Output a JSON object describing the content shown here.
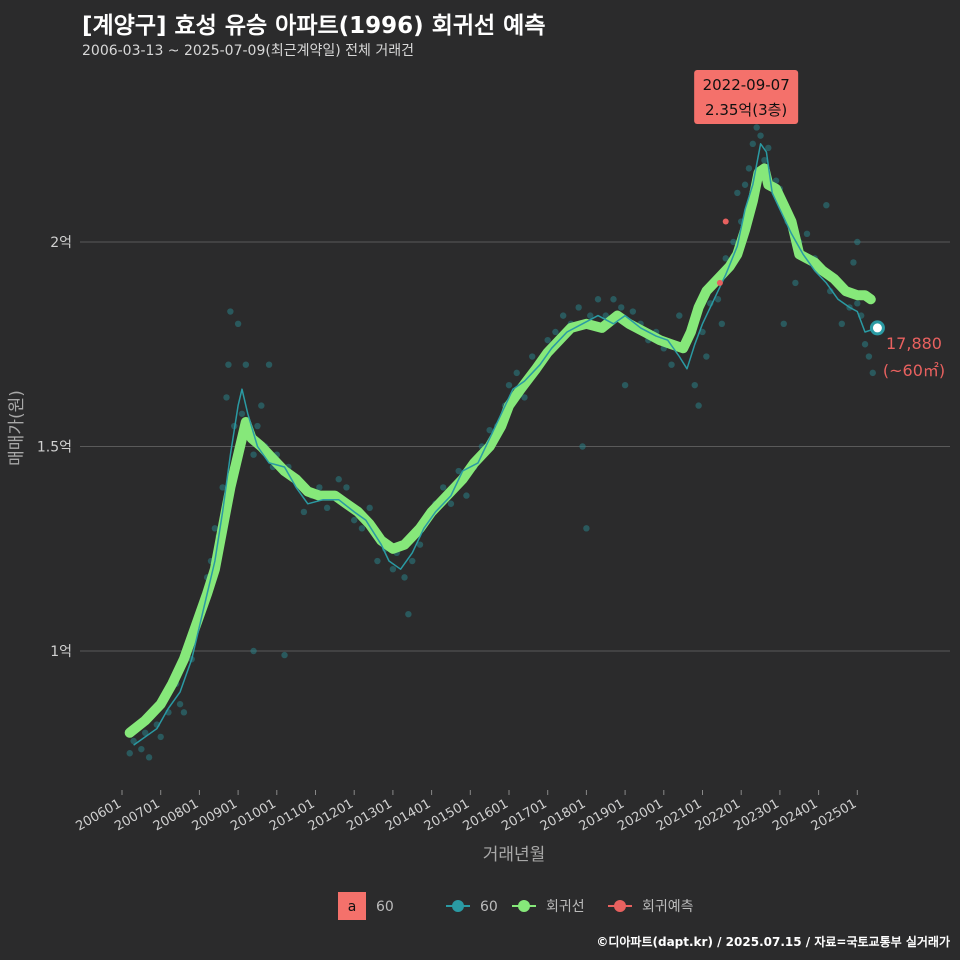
{
  "header": {
    "title": "[계양구] 효성 유승 아파트(1996) 회귀선 예측",
    "subtitle": "2006-03-13 ~ 2025-07-09(최근계약일) 전체 거래건"
  },
  "caption": "©디아파트(dapt.kr) / 2025.07.15 / 자료=국토교통부 실거래가",
  "colors": {
    "background": "#2b2b2c",
    "grid": "#5a5a5a",
    "scatter": "#2a7f86",
    "trend_line": "#2a9aa3",
    "regression": "#86e87a",
    "prediction": "#e8615f",
    "peak_box": "#f4716b"
  },
  "chart_data": {
    "type": "line",
    "xlabel": "거래년월",
    "ylabel": "매매가(원)",
    "x_range": [
      2006.0,
      2025.6
    ],
    "ylim": [
      0.72,
      2.38
    ],
    "y_ticks": [
      {
        "value": 1.0,
        "label": "1억"
      },
      {
        "value": 1.5,
        "label": "1.5억"
      },
      {
        "value": 2.0,
        "label": "2억"
      }
    ],
    "x_ticks": [
      {
        "value": 2006.0,
        "label": "200601"
      },
      {
        "value": 2007.0,
        "label": "200701"
      },
      {
        "value": 2008.0,
        "label": "200801"
      },
      {
        "value": 2009.0,
        "label": "200901"
      },
      {
        "value": 2010.0,
        "label": "201001"
      },
      {
        "value": 2011.0,
        "label": "201101"
      },
      {
        "value": 2012.0,
        "label": "201201"
      },
      {
        "value": 2013.0,
        "label": "201301"
      },
      {
        "value": 2014.0,
        "label": "201401"
      },
      {
        "value": 2015.0,
        "label": "201501"
      },
      {
        "value": 2016.0,
        "label": "201601"
      },
      {
        "value": 2017.0,
        "label": "201701"
      },
      {
        "value": 2018.0,
        "label": "201801"
      },
      {
        "value": 2019.0,
        "label": "201901"
      },
      {
        "value": 2020.0,
        "label": "202001"
      },
      {
        "value": 2021.0,
        "label": "202101"
      },
      {
        "value": 2022.0,
        "label": "202201"
      },
      {
        "value": 2023.0,
        "label": "202301"
      },
      {
        "value": 2024.0,
        "label": "202401"
      },
      {
        "value": 2025.0,
        "label": "202501"
      }
    ],
    "series": [
      {
        "name": "회귀선",
        "points": [
          [
            2006.2,
            0.8
          ],
          [
            2006.6,
            0.83
          ],
          [
            2007.0,
            0.87
          ],
          [
            2007.3,
            0.92
          ],
          [
            2007.6,
            0.98
          ],
          [
            2007.9,
            1.06
          ],
          [
            2008.2,
            1.14
          ],
          [
            2008.4,
            1.2
          ],
          [
            2008.6,
            1.3
          ],
          [
            2008.8,
            1.4
          ],
          [
            2008.95,
            1.46
          ],
          [
            2009.1,
            1.52
          ],
          [
            2009.2,
            1.56
          ],
          [
            2009.35,
            1.52
          ],
          [
            2009.6,
            1.5
          ],
          [
            2009.9,
            1.47
          ],
          [
            2010.2,
            1.44
          ],
          [
            2010.5,
            1.42
          ],
          [
            2010.8,
            1.39
          ],
          [
            2011.1,
            1.38
          ],
          [
            2011.5,
            1.38
          ],
          [
            2011.8,
            1.36
          ],
          [
            2012.1,
            1.34
          ],
          [
            2012.4,
            1.31
          ],
          [
            2012.7,
            1.27
          ],
          [
            2013.0,
            1.25
          ],
          [
            2013.3,
            1.26
          ],
          [
            2013.7,
            1.3
          ],
          [
            2014.0,
            1.34
          ],
          [
            2014.4,
            1.38
          ],
          [
            2014.8,
            1.42
          ],
          [
            2015.1,
            1.46
          ],
          [
            2015.5,
            1.5
          ],
          [
            2015.8,
            1.55
          ],
          [
            2016.0,
            1.6
          ],
          [
            2016.3,
            1.64
          ],
          [
            2016.7,
            1.69
          ],
          [
            2017.0,
            1.73
          ],
          [
            2017.3,
            1.76
          ],
          [
            2017.6,
            1.79
          ],
          [
            2018.0,
            1.8
          ],
          [
            2018.4,
            1.79
          ],
          [
            2018.8,
            1.82
          ],
          [
            2019.1,
            1.8
          ],
          [
            2019.5,
            1.78
          ],
          [
            2019.9,
            1.76
          ],
          [
            2020.2,
            1.75
          ],
          [
            2020.5,
            1.74
          ],
          [
            2020.7,
            1.78
          ],
          [
            2020.9,
            1.84
          ],
          [
            2021.1,
            1.88
          ],
          [
            2021.4,
            1.91
          ],
          [
            2021.7,
            1.94
          ],
          [
            2021.9,
            1.97
          ],
          [
            2022.1,
            2.03
          ],
          [
            2022.3,
            2.1
          ],
          [
            2022.45,
            2.17
          ],
          [
            2022.6,
            2.18
          ],
          [
            2022.7,
            2.14
          ],
          [
            2022.9,
            2.13
          ],
          [
            2023.1,
            2.09
          ],
          [
            2023.3,
            2.05
          ],
          [
            2023.5,
            1.97
          ],
          [
            2023.7,
            1.96
          ],
          [
            2023.9,
            1.95
          ],
          [
            2024.1,
            1.93
          ],
          [
            2024.4,
            1.91
          ],
          [
            2024.7,
            1.88
          ],
          [
            2025.0,
            1.87
          ],
          [
            2025.2,
            1.87
          ],
          [
            2025.35,
            1.86
          ]
        ]
      },
      {
        "name": "60",
        "points": [
          [
            2006.3,
            0.77
          ],
          [
            2006.6,
            0.79
          ],
          [
            2006.9,
            0.81
          ],
          [
            2007.2,
            0.86
          ],
          [
            2007.5,
            0.9
          ],
          [
            2007.8,
            0.98
          ],
          [
            2008.1,
            1.1
          ],
          [
            2008.4,
            1.22
          ],
          [
            2008.6,
            1.34
          ],
          [
            2008.8,
            1.48
          ],
          [
            2009.0,
            1.6
          ],
          [
            2009.1,
            1.64
          ],
          [
            2009.25,
            1.58
          ],
          [
            2009.5,
            1.5
          ],
          [
            2009.8,
            1.46
          ],
          [
            2010.2,
            1.45
          ],
          [
            2010.5,
            1.4
          ],
          [
            2010.8,
            1.36
          ],
          [
            2011.2,
            1.37
          ],
          [
            2011.6,
            1.37
          ],
          [
            2012.0,
            1.34
          ],
          [
            2012.3,
            1.32
          ],
          [
            2012.7,
            1.26
          ],
          [
            2012.9,
            1.22
          ],
          [
            2013.2,
            1.2
          ],
          [
            2013.5,
            1.24
          ],
          [
            2013.8,
            1.3
          ],
          [
            2014.1,
            1.34
          ],
          [
            2014.5,
            1.38
          ],
          [
            2014.8,
            1.44
          ],
          [
            2015.2,
            1.46
          ],
          [
            2015.5,
            1.52
          ],
          [
            2015.8,
            1.58
          ],
          [
            2016.1,
            1.64
          ],
          [
            2016.4,
            1.66
          ],
          [
            2016.8,
            1.7
          ],
          [
            2017.1,
            1.74
          ],
          [
            2017.5,
            1.78
          ],
          [
            2017.9,
            1.8
          ],
          [
            2018.3,
            1.82
          ],
          [
            2018.7,
            1.8
          ],
          [
            2019.0,
            1.82
          ],
          [
            2019.4,
            1.79
          ],
          [
            2019.8,
            1.77
          ],
          [
            2020.1,
            1.76
          ],
          [
            2020.4,
            1.72
          ],
          [
            2020.6,
            1.69
          ],
          [
            2020.8,
            1.75
          ],
          [
            2021.0,
            1.8
          ],
          [
            2021.3,
            1.86
          ],
          [
            2021.6,
            1.92
          ],
          [
            2021.9,
            1.99
          ],
          [
            2022.1,
            2.08
          ],
          [
            2022.3,
            2.14
          ],
          [
            2022.5,
            2.24
          ],
          [
            2022.65,
            2.22
          ],
          [
            2022.8,
            2.12
          ],
          [
            2023.0,
            2.08
          ],
          [
            2023.3,
            2.02
          ],
          [
            2023.6,
            1.97
          ],
          [
            2023.9,
            1.93
          ],
          [
            2024.2,
            1.9
          ],
          [
            2024.5,
            1.86
          ],
          [
            2024.8,
            1.84
          ],
          [
            2025.0,
            1.83
          ],
          [
            2025.2,
            1.78
          ],
          [
            2025.52,
            1.79
          ]
        ]
      }
    ],
    "scatter": [
      [
        2006.2,
        0.75
      ],
      [
        2006.3,
        0.78
      ],
      [
        2006.5,
        0.76
      ],
      [
        2006.6,
        0.8
      ],
      [
        2006.7,
        0.74
      ],
      [
        2006.9,
        0.82
      ],
      [
        2007.0,
        0.79
      ],
      [
        2007.1,
        0.88
      ],
      [
        2007.2,
        0.85
      ],
      [
        2007.4,
        0.92
      ],
      [
        2007.5,
        0.87
      ],
      [
        2007.6,
        0.85
      ],
      [
        2007.8,
        0.98
      ],
      [
        2007.9,
        1.05
      ],
      [
        2008.0,
        1.1
      ],
      [
        2008.1,
        1.12
      ],
      [
        2008.2,
        1.18
      ],
      [
        2008.3,
        1.22
      ],
      [
        2008.4,
        1.3
      ],
      [
        2008.5,
        1.28
      ],
      [
        2008.6,
        1.4
      ],
      [
        2008.7,
        1.62
      ],
      [
        2008.75,
        1.7
      ],
      [
        2008.8,
        1.83
      ],
      [
        2008.9,
        1.55
      ],
      [
        2009.0,
        1.8
      ],
      [
        2009.1,
        1.58
      ],
      [
        2009.2,
        1.7
      ],
      [
        2009.3,
        1.52
      ],
      [
        2009.4,
        1.48
      ],
      [
        2009.5,
        1.55
      ],
      [
        2009.6,
        1.6
      ],
      [
        2009.7,
        1.5
      ],
      [
        2009.8,
        1.7
      ],
      [
        2009.9,
        1.45
      ],
      [
        2010.0,
        1.48
      ],
      [
        2010.2,
        0.99
      ],
      [
        2009.4,
        1.0
      ],
      [
        2010.3,
        1.45
      ],
      [
        2010.5,
        1.42
      ],
      [
        2010.7,
        1.34
      ],
      [
        2010.9,
        1.38
      ],
      [
        2011.1,
        1.4
      ],
      [
        2011.3,
        1.35
      ],
      [
        2011.6,
        1.42
      ],
      [
        2011.8,
        1.4
      ],
      [
        2012.0,
        1.32
      ],
      [
        2012.2,
        1.3
      ],
      [
        2012.4,
        1.35
      ],
      [
        2012.6,
        1.22
      ],
      [
        2012.8,
        1.25
      ],
      [
        2013.0,
        1.2
      ],
      [
        2013.1,
        1.24
      ],
      [
        2013.3,
        1.18
      ],
      [
        2013.4,
        1.09
      ],
      [
        2013.5,
        1.22
      ],
      [
        2013.7,
        1.26
      ],
      [
        2013.9,
        1.32
      ],
      [
        2014.1,
        1.36
      ],
      [
        2014.3,
        1.4
      ],
      [
        2014.5,
        1.36
      ],
      [
        2014.7,
        1.44
      ],
      [
        2014.9,
        1.38
      ],
      [
        2015.1,
        1.45
      ],
      [
        2015.3,
        1.5
      ],
      [
        2015.5,
        1.54
      ],
      [
        2015.7,
        1.55
      ],
      [
        2015.9,
        1.6
      ],
      [
        2016.0,
        1.65
      ],
      [
        2016.2,
        1.68
      ],
      [
        2016.4,
        1.62
      ],
      [
        2016.6,
        1.72
      ],
      [
        2016.8,
        1.7
      ],
      [
        2017.0,
        1.76
      ],
      [
        2017.2,
        1.78
      ],
      [
        2017.4,
        1.82
      ],
      [
        2017.6,
        1.8
      ],
      [
        2017.8,
        1.84
      ],
      [
        2017.9,
        1.5
      ],
      [
        2018.0,
        1.3
      ],
      [
        2018.1,
        1.82
      ],
      [
        2018.3,
        1.86
      ],
      [
        2018.5,
        1.82
      ],
      [
        2018.7,
        1.86
      ],
      [
        2018.9,
        1.84
      ],
      [
        2019.0,
        1.65
      ],
      [
        2019.2,
        1.83
      ],
      [
        2019.4,
        1.8
      ],
      [
        2019.6,
        1.76
      ],
      [
        2019.8,
        1.78
      ],
      [
        2020.0,
        1.74
      ],
      [
        2020.2,
        1.7
      ],
      [
        2020.4,
        1.82
      ],
      [
        2020.6,
        1.75
      ],
      [
        2020.8,
        1.65
      ],
      [
        2020.9,
        1.6
      ],
      [
        2021.0,
        1.78
      ],
      [
        2021.1,
        1.72
      ],
      [
        2021.2,
        1.85
      ],
      [
        2021.4,
        1.86
      ],
      [
        2021.5,
        1.8
      ],
      [
        2021.6,
        1.96
      ],
      [
        2021.8,
        2.0
      ],
      [
        2021.9,
        2.12
      ],
      [
        2022.0,
        2.05
      ],
      [
        2022.1,
        2.14
      ],
      [
        2022.2,
        2.18
      ],
      [
        2022.3,
        2.24
      ],
      [
        2022.4,
        2.28
      ],
      [
        2022.5,
        2.26
      ],
      [
        2022.6,
        2.2
      ],
      [
        2022.7,
        2.23
      ],
      [
        2022.8,
        2.35
      ],
      [
        2022.9,
        2.15
      ],
      [
        2023.0,
        2.13
      ],
      [
        2023.1,
        1.8
      ],
      [
        2023.2,
        2.05
      ],
      [
        2023.4,
        1.9
      ],
      [
        2023.5,
        2.0
      ],
      [
        2023.7,
        2.02
      ],
      [
        2023.9,
        1.96
      ],
      [
        2024.1,
        1.93
      ],
      [
        2024.3,
        1.88
      ],
      [
        2024.5,
        1.9
      ],
      [
        2024.6,
        1.8
      ],
      [
        2024.8,
        1.84
      ],
      [
        2024.9,
        1.95
      ],
      [
        2025.0,
        1.85
      ],
      [
        2025.1,
        1.82
      ],
      [
        2025.2,
        1.75
      ],
      [
        2025.3,
        1.72
      ],
      [
        2025.4,
        1.68
      ],
      [
        2025.0,
        2.0
      ],
      [
        2024.2,
        2.09
      ]
    ],
    "predictions": [
      [
        2021.45,
        1.9
      ],
      [
        2021.6,
        2.05
      ]
    ],
    "peak_annotation": {
      "x": 2022.8,
      "y": 2.35,
      "date": "2022-09-07",
      "label": "2.35억(3층)"
    },
    "last_point": {
      "x": 2025.52,
      "y": 1.79,
      "value_label": "17,880",
      "area_label": "(~60㎡)"
    },
    "legend": [
      {
        "key": "a",
        "label": "60",
        "style": "box"
      },
      {
        "key": "line",
        "label": "60",
        "style": "teal"
      },
      {
        "key": "line",
        "label": "회귀선",
        "style": "green"
      },
      {
        "key": "line",
        "label": "회귀예측",
        "style": "red"
      }
    ]
  }
}
